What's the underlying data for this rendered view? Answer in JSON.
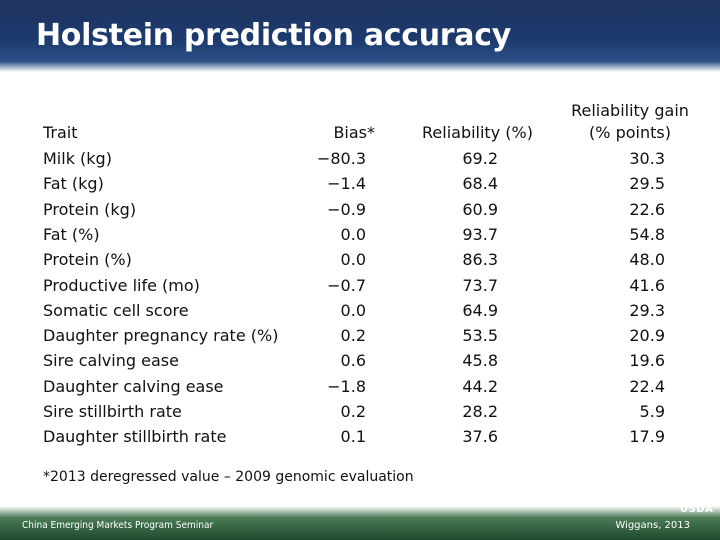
{
  "slide": {
    "title": "Holstein prediction accuracy",
    "footnote": "*2013 deregressed value – 2009 genomic evaluation",
    "footer_left": "China Emerging Markets Program Seminar",
    "footer_right": "Wiggans, 2013",
    "logo_text": "USDA"
  },
  "table": {
    "headers": {
      "trait": "Trait",
      "bias": "Bias*",
      "reliability": "Reliability (%)",
      "gain_line1": "Reliability gain",
      "gain_line2": "(% points)"
    },
    "rows": [
      {
        "trait": "Milk (kg)",
        "bias": "−80.3",
        "reliability": "69.2",
        "gain": "30.3"
      },
      {
        "trait": "Fat (kg)",
        "bias": "−1.4",
        "reliability": "68.4",
        "gain": "29.5"
      },
      {
        "trait": "Protein (kg)",
        "bias": "−0.9",
        "reliability": "60.9",
        "gain": "22.6"
      },
      {
        "trait": "Fat (%)",
        "bias": "0.0",
        "reliability": "93.7",
        "gain": "54.8"
      },
      {
        "trait": "Protein (%)",
        "bias": "0.0",
        "reliability": "86.3",
        "gain": "48.0"
      },
      {
        "trait": "Productive life (mo)",
        "bias": "−0.7",
        "reliability": "73.7",
        "gain": "41.6"
      },
      {
        "trait": "Somatic cell score",
        "bias": "0.0",
        "reliability": "64.9",
        "gain": "29.3"
      },
      {
        "trait": "Daughter pregnancy rate (%)",
        "bias": "0.2",
        "reliability": "53.5",
        "gain": "20.9"
      },
      {
        "trait": "Sire calving ease",
        "bias": "0.6",
        "reliability": "45.8",
        "gain": "19.6"
      },
      {
        "trait": "Daughter calving ease",
        "bias": "−1.8",
        "reliability": "44.2",
        "gain": "22.4"
      },
      {
        "trait": "Sire stillbirth rate",
        "bias": "0.2",
        "reliability": "28.2",
        "gain": "5.9"
      },
      {
        "trait": "Daughter stillbirth rate",
        "bias": "0.1",
        "reliability": "37.6",
        "gain": "17.9"
      }
    ]
  }
}
